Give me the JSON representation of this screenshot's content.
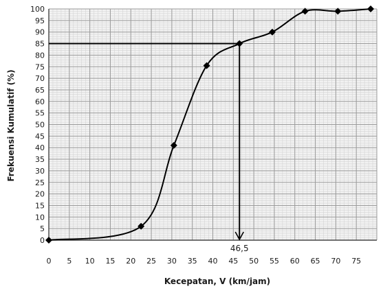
{
  "chart_data": {
    "type": "line",
    "title": "",
    "xlabel": "Kecepatan, V (km/jam)",
    "ylabel": "Frekuensi Kumulatif (%)",
    "xlim": [
      0,
      80
    ],
    "ylim": [
      0,
      100
    ],
    "x_ticks": [
      "0",
      "5",
      "10",
      "15",
      "20",
      "25",
      "30",
      "35",
      "40",
      "45",
      "50",
      "55",
      "60",
      "65",
      "70",
      "75"
    ],
    "y_ticks": [
      "0",
      "5",
      "10",
      "15",
      "20",
      "25",
      "30",
      "35",
      "40",
      "45",
      "50",
      "55",
      "60",
      "65",
      "70",
      "75",
      "80",
      "85",
      "90",
      "95",
      "100"
    ],
    "grid": true,
    "series": [
      {
        "points": [
          {
            "x": 0,
            "y": 0
          },
          {
            "x": 22.5,
            "y": 6
          },
          {
            "x": 30.5,
            "y": 41
          },
          {
            "x": 38.5,
            "y": 75.5
          },
          {
            "x": 46.5,
            "y": 85
          },
          {
            "x": 54.5,
            "y": 90
          },
          {
            "x": 62.5,
            "y": 99
          },
          {
            "x": 70.5,
            "y": 99
          },
          {
            "x": 78.5,
            "y": 100
          }
        ],
        "smoothed": true,
        "marker": "diamond",
        "color": "#000000"
      }
    ],
    "annotations": [
      {
        "type": "guide",
        "y": 85,
        "x": 46.5,
        "label": "46,5",
        "arrow": "down"
      }
    ],
    "colors": {
      "grid_major": "#9a9a9a",
      "grid_minor": "#d4d4d4",
      "line": "#000000"
    }
  }
}
